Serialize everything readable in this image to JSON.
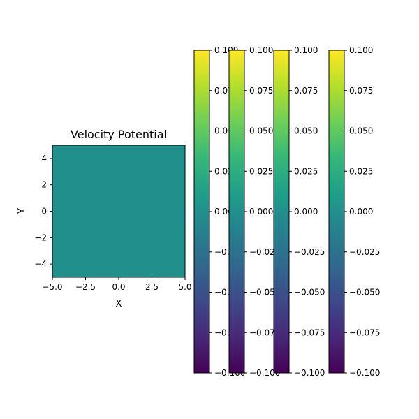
{
  "chart_data": {
    "type": "heatmap",
    "title": "Velocity Potential",
    "xlabel": "X",
    "ylabel": "Y",
    "xlim": [
      -5.0,
      5.0
    ],
    "ylim": [
      -5.0,
      5.0
    ],
    "x_tick_labels": [
      "−5.0",
      "−2.5",
      "0.0",
      "2.5",
      "5.0"
    ],
    "x_tick_values": [
      -5.0,
      -2.5,
      0.0,
      2.5,
      5.0
    ],
    "y_tick_labels": [
      "−4",
      "−2",
      "0",
      "2",
      "4"
    ],
    "y_tick_values": [
      -4,
      -2,
      0,
      2,
      4
    ],
    "field_value": 0.0,
    "colormap": "viridis",
    "colorbars": [
      {
        "vmin": -0.1,
        "vmax": 0.1,
        "tick_values": [
          -0.1,
          -0.075,
          -0.05,
          -0.025,
          0.0,
          0.025,
          0.05,
          0.075,
          0.1
        ],
        "tick_labels": [
          "−0.100",
          "−0.075",
          "−0.050",
          "−0.025",
          "0.000",
          "0.025",
          "0.050",
          "0.075",
          "0.100"
        ]
      },
      {
        "vmin": -0.1,
        "vmax": 0.1,
        "tick_values": [
          -0.1,
          -0.075,
          -0.05,
          -0.025,
          0.0,
          0.025,
          0.05,
          0.075,
          0.1
        ],
        "tick_labels": [
          "−0.100",
          "−0.075",
          "−0.050",
          "−0.025",
          "0.000",
          "0.025",
          "0.050",
          "0.075",
          "0.100"
        ]
      },
      {
        "vmin": -0.1,
        "vmax": 0.1,
        "tick_values": [
          -0.1,
          -0.075,
          -0.05,
          -0.025,
          0.0,
          0.025,
          0.05,
          0.075,
          0.1
        ],
        "tick_labels": [
          "−0.100",
          "−0.075",
          "−0.050",
          "−0.025",
          "0.000",
          "0.025",
          "0.050",
          "0.075",
          "0.100"
        ]
      },
      {
        "vmin": -0.1,
        "vmax": 0.1,
        "tick_values": [
          -0.1,
          -0.075,
          -0.05,
          -0.025,
          0.0,
          0.025,
          0.05,
          0.075,
          0.1
        ],
        "tick_labels": [
          "−0.100",
          "−0.075",
          "−0.050",
          "−0.025",
          "0.000",
          "0.025",
          "0.050",
          "0.075",
          "0.100"
        ]
      }
    ],
    "colors": {
      "field": "#21908d",
      "viridis": [
        "#440154",
        "#482878",
        "#3e4989",
        "#31688e",
        "#26828e",
        "#1f9e89",
        "#35b779",
        "#6ece58",
        "#b5de2b",
        "#fde725"
      ]
    }
  }
}
